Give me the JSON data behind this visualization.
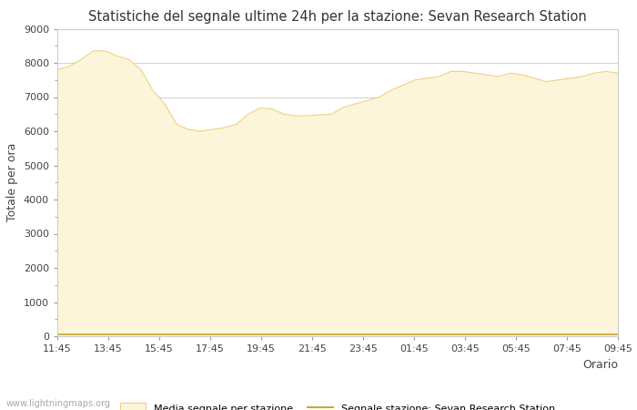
{
  "title": "Statistiche del segnale ultime 24h per la stazione: Sevan Research Station",
  "xlabel": "Orario",
  "ylabel": "Totale per ora",
  "x_labels": [
    "11:45",
    "13:45",
    "15:45",
    "17:45",
    "19:45",
    "21:45",
    "23:45",
    "01:45",
    "03:45",
    "05:45",
    "07:45",
    "09:45"
  ],
  "ylim": [
    0,
    9000
  ],
  "yticks": [
    0,
    1000,
    2000,
    3000,
    4000,
    5000,
    6000,
    7000,
    8000,
    9000
  ],
  "fill_color": "#fdf5d9",
  "fill_edge_color": "#f0d080",
  "line_color": "#c8a832",
  "background_color": "#ffffff",
  "plot_bg_color": "#ffffff",
  "grid_color": "#d0d0d0",
  "watermark": "www.lightningmaps.org",
  "legend_fill_label": "Media segnale per stazione",
  "legend_line_label": "Segnale stazione: Sevan Research Station",
  "x_values": [
    0,
    1,
    2,
    3,
    4,
    5,
    6,
    7,
    8,
    9,
    10,
    11,
    12,
    13,
    14,
    15,
    16,
    17,
    18,
    19,
    20,
    21,
    22,
    23,
    24,
    25,
    26,
    27,
    28,
    29,
    30,
    31,
    32,
    33,
    34,
    35,
    36,
    37,
    38,
    39,
    40,
    41,
    42,
    43,
    44,
    45,
    46,
    47
  ],
  "fill_values": [
    7800,
    7900,
    8100,
    8350,
    8350,
    8200,
    8100,
    7800,
    7200,
    6800,
    6200,
    6050,
    6000,
    6050,
    6100,
    6200,
    6500,
    6680,
    6650,
    6500,
    6450,
    6450,
    6480,
    6500,
    6700,
    6800,
    6900,
    7000,
    7200,
    7350,
    7500,
    7550,
    7600,
    7750,
    7750,
    7700,
    7650,
    7600,
    7700,
    7650,
    7550,
    7450,
    7500,
    7550,
    7600,
    7700,
    7750,
    7700
  ],
  "line_values": [
    50,
    50,
    50,
    50,
    50,
    50,
    50,
    50,
    50,
    50,
    50,
    50,
    50,
    50,
    50,
    50,
    50,
    50,
    50,
    50,
    50,
    50,
    50,
    50,
    50,
    50,
    50,
    50,
    50,
    50,
    50,
    50,
    50,
    50,
    50,
    50,
    50,
    50,
    50,
    50,
    50,
    50,
    50,
    50,
    50,
    50,
    50,
    50
  ]
}
